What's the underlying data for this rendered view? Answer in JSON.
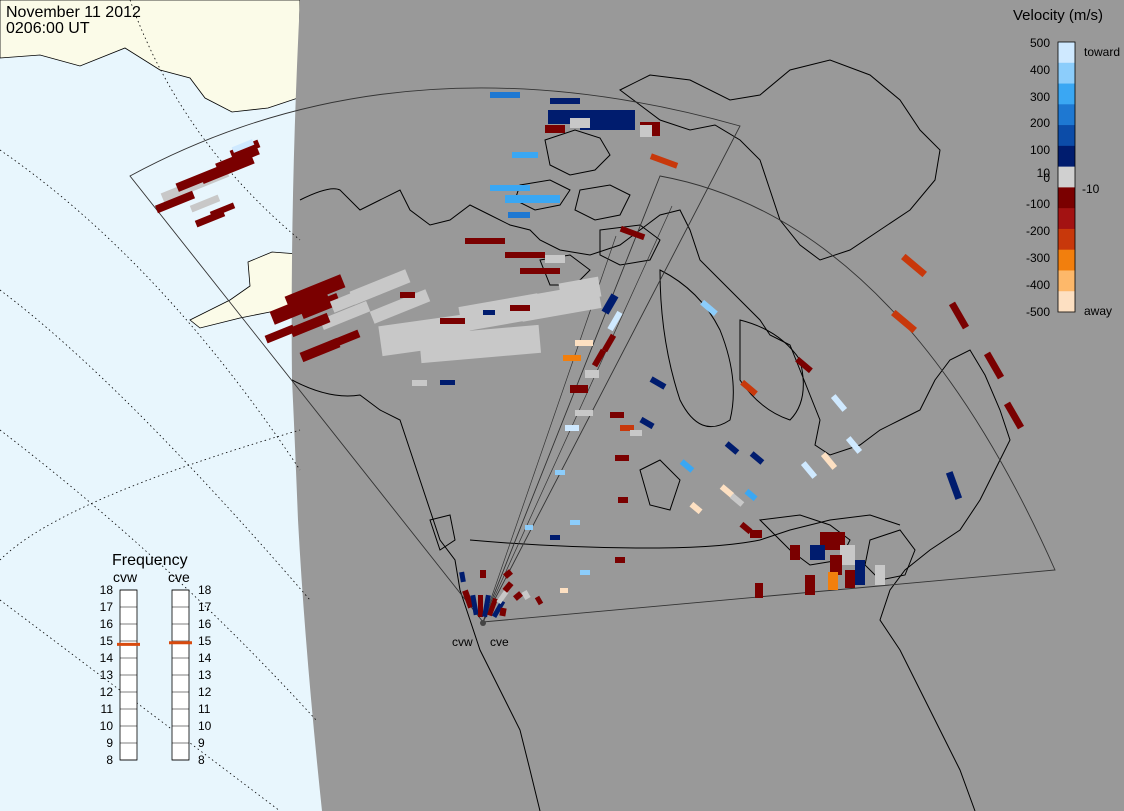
{
  "header": {
    "date": "November 11 2012",
    "time": "0206:00 UT"
  },
  "colors": {
    "ocean": "#e8f6fd",
    "land": "#fbfbe8",
    "night": "#999999",
    "coast": "#000000",
    "ground_scatter": "#c8c8c8"
  },
  "velocity_scale": {
    "title": "Velocity (m/s)",
    "toward_label": "toward",
    "away_label": "away",
    "ticks": [
      "500",
      "400",
      "300",
      "200",
      "100",
      "10",
      "0",
      "-10",
      "-100",
      "-200",
      "-300",
      "-400",
      "-500"
    ],
    "colors": [
      "#cfe9ff",
      "#8ccdfb",
      "#3aa7f3",
      "#1e78d2",
      "#0c4ca8",
      "#001c6e",
      "#d0d0d0",
      "#7a0000",
      "#a31212",
      "#c8380b",
      "#f27f0d",
      "#fdb86a",
      "#fde0c2"
    ]
  },
  "frequency_panel": {
    "title": "Frequency",
    "radars": [
      "cvw",
      "cve"
    ],
    "ticks": [
      "18",
      "17",
      "16",
      "15",
      "14",
      "13",
      "12",
      "11",
      "10",
      "9",
      "8"
    ],
    "current_mhz": [
      14.8,
      14.9
    ]
  },
  "radar_sites": [
    {
      "code": "cvw"
    },
    {
      "code": "cve"
    }
  ]
}
